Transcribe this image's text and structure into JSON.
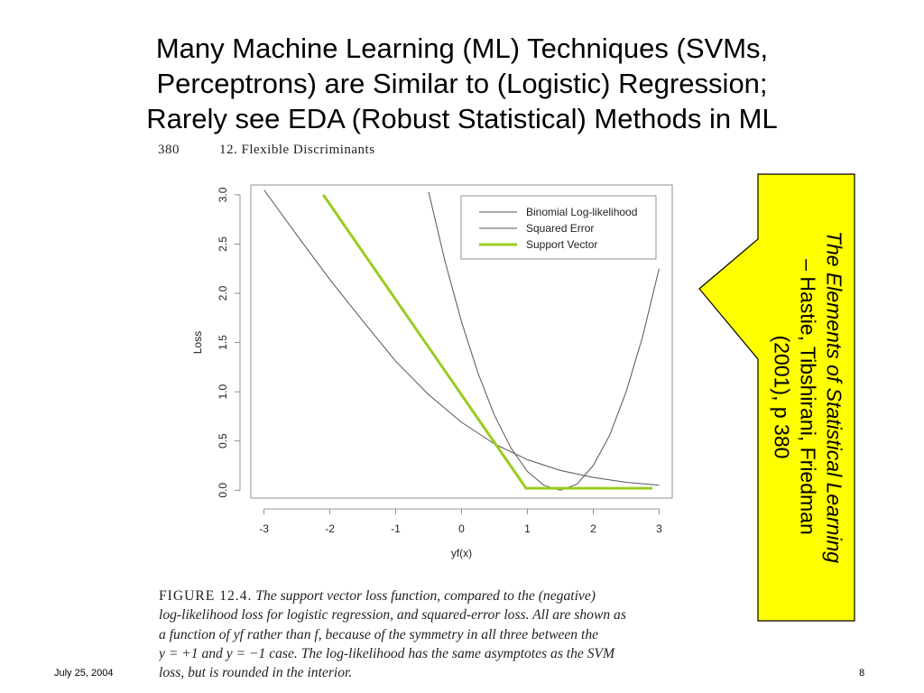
{
  "slide": {
    "title_lines": [
      "Many Machine Learning (ML) Techniques (SVMs,",
      "Perceptrons) are Similar to (Logistic) Regression;",
      "Rarely see EDA (Robust Statistical) Methods in ML"
    ],
    "footer_date": "July 25, 2004",
    "page_number": "8"
  },
  "book_header": {
    "page": "380",
    "chapter": "12.  Flexible Discriminants"
  },
  "callout": {
    "fill": "#ffff00",
    "line1_italic": "The Elements of Statistical Learning",
    "line2": "– Hastie, Tibshirani, Friedman",
    "line3": "(2001), p 380"
  },
  "caption": {
    "figure_label": "FIGURE 12.4.",
    "line1": "The support vector loss function, compared to the (negative)",
    "line2": "log-likelihood loss for logistic regression, and squared-error loss. All are shown as",
    "line3": "a function of yf rather than f, because of the symmetry in all three between the",
    "line4": "y = +1 and y = −1 case. The log-likelihood has the same asymptotes as the SVM",
    "line5": "loss, but is rounded in the interior."
  },
  "chart_data": {
    "type": "line",
    "xlabel": "yf(x)",
    "ylabel": "Loss",
    "xlim": [
      -3.2,
      3.2
    ],
    "ylim": [
      -0.08,
      3.1
    ],
    "x_ticks": [
      -3,
      -2,
      -1,
      0,
      1,
      2,
      3
    ],
    "y_ticks": [
      0.0,
      0.5,
      1.0,
      1.5,
      2.0,
      2.5,
      3.0
    ],
    "x_tick_labels": [
      "-3",
      "-2",
      "-1",
      "0",
      "1",
      "2",
      "3"
    ],
    "y_tick_labels": [
      "0.0",
      "0.5",
      "1.0",
      "1.5",
      "2.0",
      "2.5",
      "3.0"
    ],
    "legend_position": "top-right",
    "series": [
      {
        "name": "Binomial Log-likelihood",
        "color": "#555555",
        "x": [
          -3.0,
          -2.5,
          -2.0,
          -1.5,
          -1.0,
          -0.5,
          0.0,
          0.5,
          1.0,
          1.5,
          2.0,
          2.5,
          3.0
        ],
        "y": [
          3.05,
          2.59,
          2.14,
          1.72,
          1.31,
          0.97,
          0.69,
          0.47,
          0.31,
          0.2,
          0.13,
          0.08,
          0.05
        ]
      },
      {
        "name": "Squared Error",
        "color": "#555555",
        "x": [
          -0.5,
          -0.25,
          0.0,
          0.25,
          0.5,
          0.75,
          1.0,
          1.25,
          1.5,
          1.75,
          2.0,
          2.25,
          2.5,
          2.75,
          3.0
        ],
        "y": [
          3.03,
          2.32,
          1.71,
          1.19,
          0.76,
          0.43,
          0.19,
          0.05,
          0.0,
          0.06,
          0.25,
          0.56,
          1.0,
          1.56,
          2.25
        ]
      },
      {
        "name": "Support Vector",
        "color": "#99cc22",
        "x": [
          -2.1,
          0.98,
          2.9
        ],
        "y": [
          3.0,
          0.02,
          0.02
        ]
      }
    ]
  }
}
